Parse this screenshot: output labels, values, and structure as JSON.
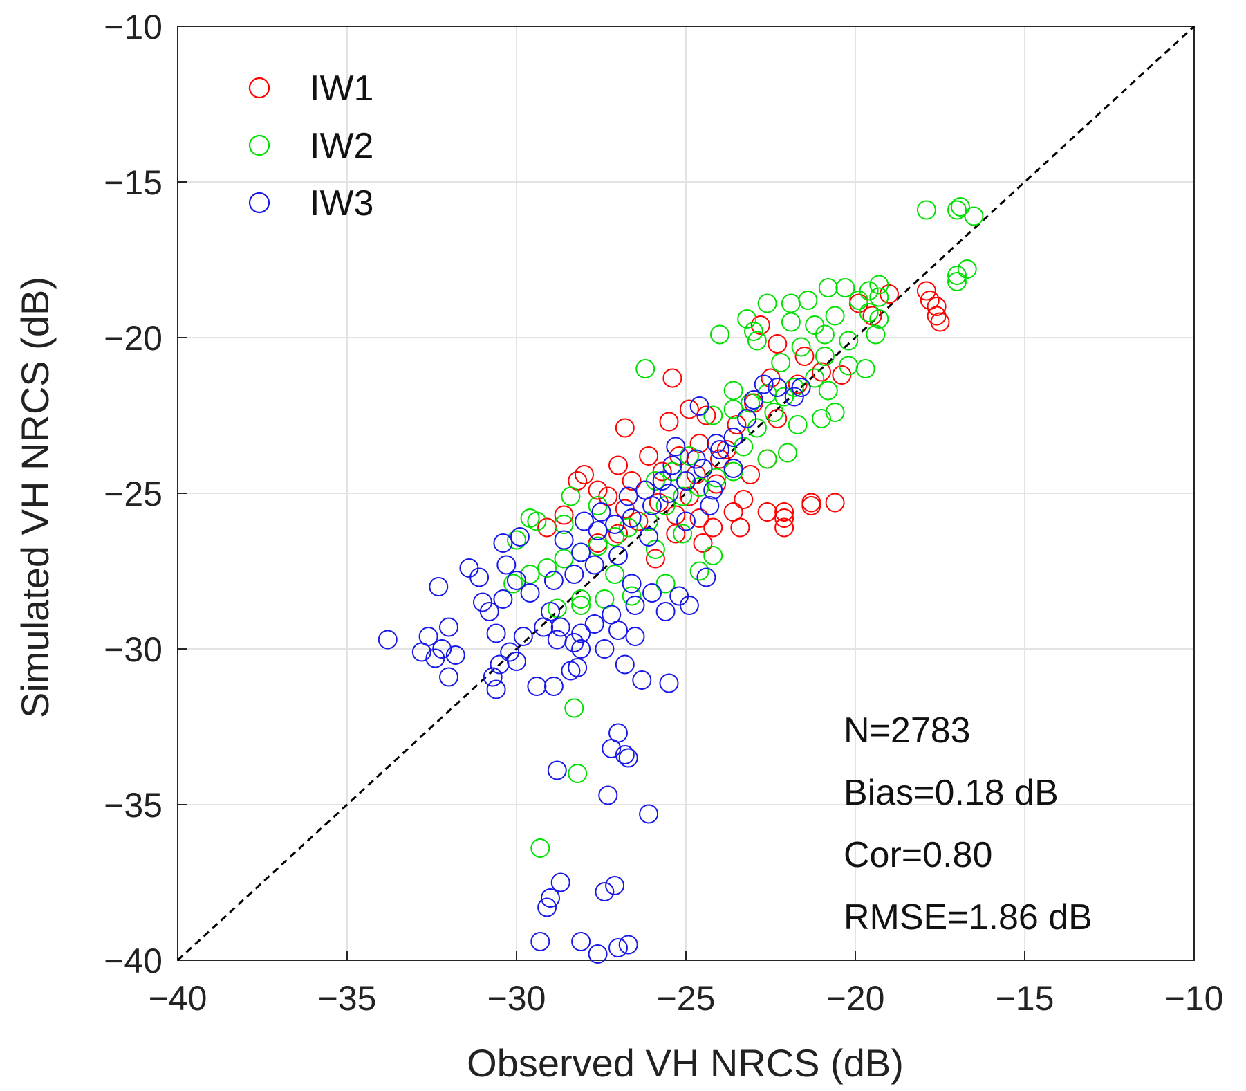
{
  "chart_data": {
    "type": "scatter",
    "title": "",
    "xlabel": "Observed VH NRCS (dB)",
    "ylabel": "Simulated VH NRCS (dB)",
    "xlim": [
      -40,
      -10
    ],
    "ylim": [
      -40,
      -10
    ],
    "xticks": [
      -40,
      -35,
      -30,
      -25,
      -20,
      -15,
      -10
    ],
    "yticks": [
      -10,
      -15,
      -20,
      -25,
      -30,
      -35,
      -40
    ],
    "xtick_labels": [
      "−40",
      "−35",
      "−30",
      "−25",
      "−20",
      "−15",
      "−10"
    ],
    "ytick_labels": [
      "−10",
      "−15",
      "−20",
      "−25",
      "−30",
      "−35",
      "−40"
    ],
    "grid": true,
    "legend_position": "top-left",
    "reference_line": {
      "type": "1:1",
      "style": "dashed",
      "color": "#000000"
    },
    "series": [
      {
        "name": "IW1",
        "color": "#ff0000",
        "marker": "open-circle",
        "points": [
          [
            -17.9,
            -18.5
          ],
          [
            -17.6,
            -19.0
          ],
          [
            -17.6,
            -19.3
          ],
          [
            -17.5,
            -19.5
          ],
          [
            -17.8,
            -18.8
          ],
          [
            -19.0,
            -18.6
          ],
          [
            -19.5,
            -19.3
          ],
          [
            -19.9,
            -18.9
          ],
          [
            -20.6,
            -25.3
          ],
          [
            -21.3,
            -25.3
          ],
          [
            -21.3,
            -25.4
          ],
          [
            -22.1,
            -25.6
          ],
          [
            -22.1,
            -25.8
          ],
          [
            -22.1,
            -26.1
          ],
          [
            -22.6,
            -25.6
          ],
          [
            -22.8,
            -19.6
          ],
          [
            -22.3,
            -20.2
          ],
          [
            -21.5,
            -20.6
          ],
          [
            -21.0,
            -21.1
          ],
          [
            -20.4,
            -21.2
          ],
          [
            -21.7,
            -21.5
          ],
          [
            -22.5,
            -21.3
          ],
          [
            -23.0,
            -22.1
          ],
          [
            -22.3,
            -22.6
          ],
          [
            -25.4,
            -21.3
          ],
          [
            -26.8,
            -22.9
          ],
          [
            -25.5,
            -22.7
          ],
          [
            -24.9,
            -22.3
          ],
          [
            -24.4,
            -22.5
          ],
          [
            -24.6,
            -23.4
          ],
          [
            -24.0,
            -23.9
          ],
          [
            -24.7,
            -24.4
          ],
          [
            -28.0,
            -24.4
          ],
          [
            -28.2,
            -24.6
          ],
          [
            -27.0,
            -24.1
          ],
          [
            -26.6,
            -24.6
          ],
          [
            -26.2,
            -24.9
          ],
          [
            -27.6,
            -24.9
          ],
          [
            -25.8,
            -25.3
          ],
          [
            -25.3,
            -25.7
          ],
          [
            -24.6,
            -25.8
          ],
          [
            -24.2,
            -26.1
          ],
          [
            -23.6,
            -25.6
          ],
          [
            -23.4,
            -26.1
          ],
          [
            -26.4,
            -25.9
          ],
          [
            -27.0,
            -26.3
          ],
          [
            -28.6,
            -25.7
          ],
          [
            -29.1,
            -26.1
          ],
          [
            -25.3,
            -26.3
          ],
          [
            -24.1,
            -24.7
          ],
          [
            -23.8,
            -23.6
          ],
          [
            -23.5,
            -22.8
          ],
          [
            -26.1,
            -23.8
          ],
          [
            -26.8,
            -25.5
          ],
          [
            -27.6,
            -26.6
          ],
          [
            -25.9,
            -27.1
          ],
          [
            -24.5,
            -26.6
          ],
          [
            -23.3,
            -25.2
          ],
          [
            -22.6,
            -23.9
          ],
          [
            -23.1,
            -24.4
          ],
          [
            -25.7,
            -24.3
          ],
          [
            -25.2,
            -23.8
          ],
          [
            -24.9,
            -25.1
          ],
          [
            -27.3,
            -25.1
          ]
        ]
      },
      {
        "name": "IW2",
        "color": "#00e000",
        "marker": "open-circle",
        "points": [
          [
            -16.5,
            -16.1
          ],
          [
            -16.9,
            -15.8
          ],
          [
            -17.0,
            -15.9
          ],
          [
            -17.9,
            -15.9
          ],
          [
            -16.7,
            -17.8
          ],
          [
            -17.0,
            -18.0
          ],
          [
            -17.0,
            -18.2
          ],
          [
            -19.3,
            -18.3
          ],
          [
            -19.3,
            -18.7
          ],
          [
            -19.6,
            -18.5
          ],
          [
            -19.9,
            -18.8
          ],
          [
            -20.3,
            -18.4
          ],
          [
            -20.8,
            -18.4
          ],
          [
            -21.4,
            -18.8
          ],
          [
            -21.9,
            -18.9
          ],
          [
            -22.6,
            -18.9
          ],
          [
            -23.2,
            -19.4
          ],
          [
            -22.9,
            -20.1
          ],
          [
            -21.9,
            -19.5
          ],
          [
            -21.2,
            -19.6
          ],
          [
            -20.9,
            -19.9
          ],
          [
            -20.6,
            -19.3
          ],
          [
            -20.2,
            -20.1
          ],
          [
            -19.4,
            -19.9
          ],
          [
            -20.2,
            -20.9
          ],
          [
            -19.7,
            -21.0
          ],
          [
            -20.9,
            -20.6
          ],
          [
            -21.6,
            -20.3
          ],
          [
            -22.2,
            -20.8
          ],
          [
            -21.2,
            -21.3
          ],
          [
            -20.8,
            -21.7
          ],
          [
            -20.6,
            -22.4
          ],
          [
            -21.0,
            -22.6
          ],
          [
            -21.7,
            -22.8
          ],
          [
            -22.4,
            -22.4
          ],
          [
            -22.9,
            -22.9
          ],
          [
            -23.3,
            -23.5
          ],
          [
            -22.6,
            -23.9
          ],
          [
            -22.0,
            -23.7
          ],
          [
            -23.6,
            -24.3
          ],
          [
            -24.1,
            -24.5
          ],
          [
            -24.6,
            -24.8
          ],
          [
            -25.1,
            -25.1
          ],
          [
            -25.6,
            -25.4
          ],
          [
            -26.1,
            -25.9
          ],
          [
            -26.7,
            -26.1
          ],
          [
            -27.1,
            -26.4
          ],
          [
            -27.6,
            -26.7
          ],
          [
            -28.1,
            -26.9
          ],
          [
            -28.6,
            -27.1
          ],
          [
            -29.1,
            -27.4
          ],
          [
            -29.6,
            -27.6
          ],
          [
            -30.1,
            -27.9
          ],
          [
            -29.6,
            -25.8
          ],
          [
            -30.0,
            -26.5
          ],
          [
            -28.6,
            -26.0
          ],
          [
            -24.2,
            -22.5
          ],
          [
            -23.6,
            -22.3
          ],
          [
            -26.2,
            -21.0
          ],
          [
            -24.2,
            -27.0
          ],
          [
            -24.6,
            -27.5
          ],
          [
            -25.6,
            -27.9
          ],
          [
            -26.6,
            -28.3
          ],
          [
            -27.4,
            -28.4
          ],
          [
            -28.1,
            -28.4
          ],
          [
            -28.8,
            -28.7
          ],
          [
            -27.1,
            -27.6
          ],
          [
            -25.9,
            -26.8
          ],
          [
            -25.1,
            -26.3
          ],
          [
            -25.4,
            -24.3
          ],
          [
            -24.9,
            -23.8
          ],
          [
            -25.9,
            -24.6
          ],
          [
            -27.6,
            -25.4
          ],
          [
            -28.4,
            -25.1
          ],
          [
            -29.4,
            -25.9
          ],
          [
            -28.1,
            -28.6
          ],
          [
            -28.3,
            -31.9
          ],
          [
            -28.2,
            -34.0
          ],
          [
            -29.3,
            -36.4
          ],
          [
            -23.1,
            -22.1
          ],
          [
            -22.6,
            -21.8
          ],
          [
            -22.1,
            -21.9
          ],
          [
            -21.8,
            -21.6
          ],
          [
            -23.6,
            -21.7
          ],
          [
            -19.3,
            -19.4
          ],
          [
            -19.6,
            -19.2
          ],
          [
            -23.0,
            -19.8
          ],
          [
            -24.0,
            -19.9
          ]
        ]
      },
      {
        "name": "IW3",
        "color": "#1818e8",
        "marker": "open-circle",
        "points": [
          [
            -33.8,
            -29.7
          ],
          [
            -32.8,
            -30.1
          ],
          [
            -32.4,
            -30.3
          ],
          [
            -32.2,
            -30.0
          ],
          [
            -32.6,
            -29.6
          ],
          [
            -32.0,
            -29.3
          ],
          [
            -31.8,
            -30.2
          ],
          [
            -32.0,
            -30.9
          ],
          [
            -31.4,
            -27.4
          ],
          [
            -31.1,
            -27.7
          ],
          [
            -32.3,
            -28.0
          ],
          [
            -31.0,
            -28.5
          ],
          [
            -30.8,
            -28.8
          ],
          [
            -30.4,
            -28.4
          ],
          [
            -30.6,
            -29.5
          ],
          [
            -30.2,
            -30.1
          ],
          [
            -30.5,
            -30.5
          ],
          [
            -30.0,
            -30.4
          ],
          [
            -30.7,
            -30.9
          ],
          [
            -30.6,
            -31.3
          ],
          [
            -29.4,
            -31.2
          ],
          [
            -28.9,
            -31.2
          ],
          [
            -28.2,
            -30.6
          ],
          [
            -28.4,
            -30.7
          ],
          [
            -28.1,
            -30.0
          ],
          [
            -28.3,
            -29.8
          ],
          [
            -27.4,
            -30.0
          ],
          [
            -26.8,
            -30.5
          ],
          [
            -26.3,
            -31.0
          ],
          [
            -25.5,
            -31.1
          ],
          [
            -26.5,
            -29.6
          ],
          [
            -27.0,
            -29.4
          ],
          [
            -28.8,
            -29.7
          ],
          [
            -29.8,
            -29.6
          ],
          [
            -29.0,
            -28.8
          ],
          [
            -29.6,
            -28.2
          ],
          [
            -30.0,
            -27.8
          ],
          [
            -30.3,
            -27.3
          ],
          [
            -30.4,
            -26.6
          ],
          [
            -29.9,
            -26.4
          ],
          [
            -28.6,
            -26.5
          ],
          [
            -28.1,
            -26.9
          ],
          [
            -27.6,
            -26.2
          ],
          [
            -27.1,
            -26.0
          ],
          [
            -26.6,
            -25.8
          ],
          [
            -26.0,
            -25.4
          ],
          [
            -25.5,
            -25.0
          ],
          [
            -25.0,
            -24.6
          ],
          [
            -24.5,
            -24.2
          ],
          [
            -24.0,
            -23.6
          ],
          [
            -23.6,
            -23.2
          ],
          [
            -23.2,
            -22.6
          ],
          [
            -23.0,
            -22.0
          ],
          [
            -22.7,
            -21.5
          ],
          [
            -22.3,
            -21.6
          ],
          [
            -21.6,
            -21.6
          ],
          [
            -21.8,
            -21.9
          ],
          [
            -24.6,
            -22.2
          ],
          [
            -25.3,
            -23.5
          ],
          [
            -24.2,
            -24.9
          ],
          [
            -24.3,
            -25.4
          ],
          [
            -25.0,
            -25.9
          ],
          [
            -26.1,
            -26.4
          ],
          [
            -27.0,
            -27.0
          ],
          [
            -27.7,
            -27.3
          ],
          [
            -28.3,
            -27.6
          ],
          [
            -28.9,
            -27.8
          ],
          [
            -26.6,
            -27.9
          ],
          [
            -26.0,
            -28.2
          ],
          [
            -25.2,
            -28.3
          ],
          [
            -24.4,
            -27.7
          ],
          [
            -24.9,
            -28.6
          ],
          [
            -25.6,
            -28.8
          ],
          [
            -26.5,
            -28.6
          ],
          [
            -27.2,
            -28.9
          ],
          [
            -27.7,
            -29.2
          ],
          [
            -28.1,
            -29.5
          ],
          [
            -28.7,
            -29.3
          ],
          [
            -29.2,
            -29.3
          ],
          [
            -26.7,
            -25.1
          ],
          [
            -27.5,
            -25.6
          ],
          [
            -28.0,
            -25.9
          ],
          [
            -26.2,
            -24.9
          ],
          [
            -25.7,
            -24.6
          ],
          [
            -25.4,
            -24.1
          ],
          [
            -24.7,
            -23.9
          ],
          [
            -24.1,
            -23.4
          ],
          [
            -23.6,
            -24.2
          ],
          [
            -27.0,
            -32.7
          ],
          [
            -27.2,
            -33.2
          ],
          [
            -26.8,
            -33.4
          ],
          [
            -26.7,
            -33.5
          ],
          [
            -28.8,
            -33.9
          ],
          [
            -27.3,
            -34.7
          ],
          [
            -26.1,
            -35.3
          ],
          [
            -28.7,
            -37.5
          ],
          [
            -29.0,
            -38.0
          ],
          [
            -29.1,
            -38.3
          ],
          [
            -27.4,
            -37.8
          ],
          [
            -27.1,
            -37.6
          ],
          [
            -29.3,
            -39.4
          ],
          [
            -28.1,
            -39.4
          ],
          [
            -27.6,
            -39.8
          ],
          [
            -27.0,
            -39.6
          ],
          [
            -26.7,
            -39.5
          ]
        ]
      }
    ],
    "annotations": [
      "N=2783",
      "Bias=0.18 dB",
      "Cor=0.80",
      "RMSE=1.86 dB"
    ]
  }
}
